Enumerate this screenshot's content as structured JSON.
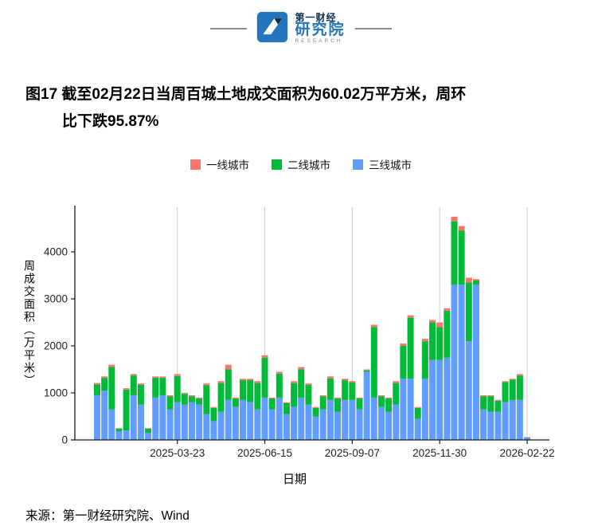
{
  "logo": {
    "brand_top": "第一财经",
    "brand_main": "研究院",
    "brand_sub": "RESEARCH"
  },
  "title": {
    "line1": "图17 截至02月22日当周百城土地成交面积为60.02万平方米，周环",
    "line2": "比下跌95.87%"
  },
  "footer": {
    "source": "来源：第一财经研究院、Wind"
  },
  "chart_data": {
    "type": "bar",
    "stacked": true,
    "title": "",
    "xlabel": "日期",
    "ylabel": "周成交面积（万平米）",
    "ylim": [
      0,
      4950
    ],
    "yticks": [
      0,
      1000,
      2000,
      3000,
      4000
    ],
    "x_tick_labels": [
      "2025-03-23",
      "2025-06-15",
      "2025-09-07",
      "2025-11-30",
      "2026-02-22"
    ],
    "x_tick_indices": [
      11,
      23,
      35,
      47,
      59
    ],
    "grid": "vertical-major-only",
    "grid_color": "#cccccc",
    "legend_position": "top",
    "series": [
      {
        "name": "一线城市",
        "color": "#F8766D",
        "values": [
          30,
          30,
          50,
          10,
          30,
          30,
          30,
          10,
          30,
          30,
          20,
          40,
          20,
          20,
          20,
          40,
          20,
          40,
          100,
          20,
          30,
          30,
          40,
          50,
          20,
          40,
          20,
          40,
          50,
          30,
          20,
          20,
          40,
          20,
          30,
          30,
          20,
          20,
          50,
          20,
          20,
          40,
          50,
          50,
          20,
          50,
          50,
          100,
          50,
          100,
          100,
          100,
          30,
          20,
          20,
          20,
          20,
          20,
          30,
          2
        ]
      },
      {
        "name": "二线城市",
        "color": "#00BA38",
        "values": [
          230,
          270,
          900,
          60,
          870,
          420,
          420,
          90,
          420,
          370,
          280,
          560,
          230,
          130,
          130,
          610,
          280,
          610,
          650,
          180,
          420,
          470,
          560,
          850,
          230,
          510,
          230,
          510,
          600,
          420,
          180,
          280,
          460,
          280,
          420,
          370,
          230,
          30,
          1500,
          230,
          280,
          460,
          700,
          1300,
          230,
          800,
          800,
          700,
          1000,
          1350,
          1150,
          1250,
          90,
          280,
          330,
          230,
          430,
          430,
          520,
          8
        ]
      },
      {
        "name": "三线城市",
        "color": "#619CFF",
        "values": [
          950,
          1050,
          650,
          180,
          200,
          950,
          750,
          150,
          900,
          950,
          650,
          800,
          750,
          800,
          750,
          550,
          400,
          600,
          850,
          700,
          850,
          800,
          650,
          900,
          650,
          900,
          550,
          700,
          900,
          750,
          500,
          650,
          850,
          600,
          850,
          850,
          650,
          1450,
          900,
          700,
          600,
          750,
          1300,
          1300,
          450,
          1300,
          1700,
          1700,
          1750,
          3300,
          3300,
          2100,
          3300,
          650,
          600,
          600,
          800,
          850,
          850,
          50
        ]
      }
    ]
  }
}
